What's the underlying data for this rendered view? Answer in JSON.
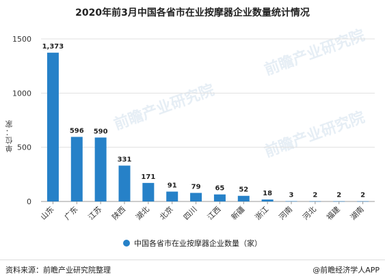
{
  "title": "2020年前3月中国各省市在业按摩器企业数量统计情况",
  "footer": {
    "source": "资料来源：前瞻产业研究院整理",
    "credit": "@前瞻经济学人APP"
  },
  "watermark": "前瞻产业研究院",
  "colors": {
    "bar": "#2681c8",
    "grid": "#e0e0e0",
    "axis": "#999999"
  },
  "chart_data": {
    "type": "bar",
    "title": "2020年前3月中国各省市在业按摩器企业数量统计情况",
    "ylabel": "单位：家",
    "xlabel": "",
    "ylim": [
      0,
      1500
    ],
    "yticks": [
      0,
      500,
      1000,
      1500
    ],
    "grid": true,
    "legend_position": "bottom",
    "categories": [
      "山东",
      "广东",
      "江苏",
      "陕西",
      "湖北",
      "北京",
      "四川",
      "江西",
      "新疆",
      "浙江",
      "河南",
      "河北",
      "福建",
      "湖南"
    ],
    "series": [
      {
        "name": "中国各省市在业按摩器企业数量（家）",
        "values": [
          1373,
          596,
          590,
          331,
          171,
          91,
          79,
          65,
          52,
          18,
          3,
          2,
          2,
          2
        ],
        "labels": [
          "1,373",
          "596",
          "590",
          "331",
          "171",
          "91",
          "79",
          "65",
          "52",
          "18",
          "3",
          "2",
          "2",
          "2"
        ]
      }
    ]
  }
}
